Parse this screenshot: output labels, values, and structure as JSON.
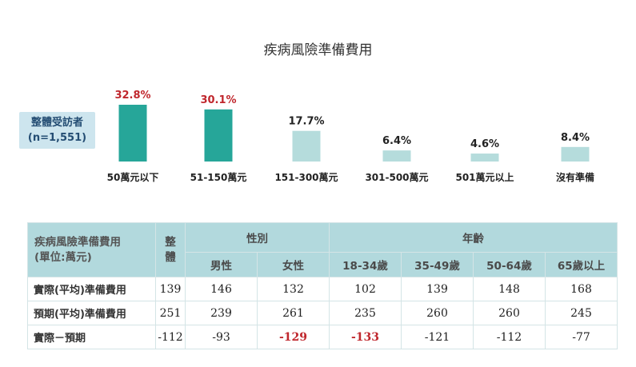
{
  "chart_data": {
    "type": "bar",
    "title": "疾病風險準備費用",
    "group_label_line1": "整體受訪者",
    "group_label_line2": "(n=1,551)",
    "categories": [
      "50萬元以下",
      "51-150萬元",
      "151-300萬元",
      "301-500萬元",
      "501萬元以上",
      "沒有準備"
    ],
    "values": [
      32.8,
      30.1,
      17.7,
      6.4,
      4.6,
      8.4
    ],
    "value_labels": [
      "32.8%",
      "30.1%",
      "17.7%",
      "6.4%",
      "4.6%",
      "8.4%"
    ],
    "highlighted": [
      true,
      true,
      false,
      false,
      false,
      false
    ],
    "colors": {
      "highlight_bar": "#26a699",
      "normal_bar": "#b5dcdc",
      "highlight_label": "#c0272d",
      "normal_label": "#222222"
    },
    "ylim": [
      0,
      40
    ],
    "grid": false,
    "legend": "none"
  },
  "table": {
    "header_label_line1": "疾病風險準備費用",
    "header_label_line2": "(單位:萬元)",
    "total_line1": "整",
    "total_line2": "體",
    "gender_group": "性別",
    "age_group": "年齡",
    "columns": [
      "男性",
      "女性",
      "18-34歲",
      "35-49歲",
      "50-64歲",
      "65歲以上"
    ],
    "rows": [
      {
        "label": "實際(平均)準備費用",
        "total": "139",
        "cells": [
          "146",
          "132",
          "102",
          "139",
          "148",
          "168"
        ],
        "hl": []
      },
      {
        "label": "預期(平均)準備費用",
        "total": "251",
        "cells": [
          "239",
          "261",
          "235",
          "260",
          "260",
          "245"
        ],
        "hl": []
      },
      {
        "label": "實際－預期",
        "total": "-112",
        "cells": [
          "-93",
          "-129",
          "-133",
          "-121",
          "-112",
          "-77"
        ],
        "hl": [
          1,
          2
        ]
      }
    ]
  }
}
